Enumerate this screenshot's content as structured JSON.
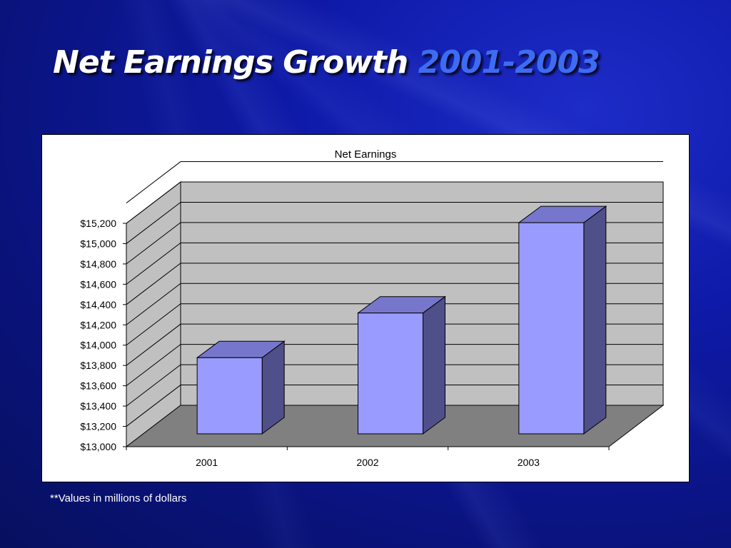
{
  "slide": {
    "title_main": "Net Earnings Growth",
    "title_years": "2001-2003",
    "footnote": "**Values in millions of dollars"
  },
  "colors": {
    "background": "#0e1aa8",
    "title_accent": "#3d6cf2",
    "bar_front": "#9a9bfe",
    "bar_top": "#7677cc",
    "bar_side": "#4f4f8a",
    "back_wall": "#c0c0c0",
    "floor": "#808080"
  },
  "chart_data": {
    "type": "bar",
    "three_d": true,
    "title": "Net Earnings",
    "xlabel": "",
    "ylabel": "",
    "categories": [
      "2001",
      "2002",
      "2003"
    ],
    "values": [
      13750,
      14190,
      15080
    ],
    "ylim": [
      13000,
      15200
    ],
    "y_ticks": [
      "$13,000",
      "$13,200",
      "$13,400",
      "$13,600",
      "$13,800",
      "$14,000",
      "$14,200",
      "$14,400",
      "$14,600",
      "$14,800",
      "$15,000",
      "$15,200"
    ],
    "grid": true,
    "legend": "none"
  }
}
